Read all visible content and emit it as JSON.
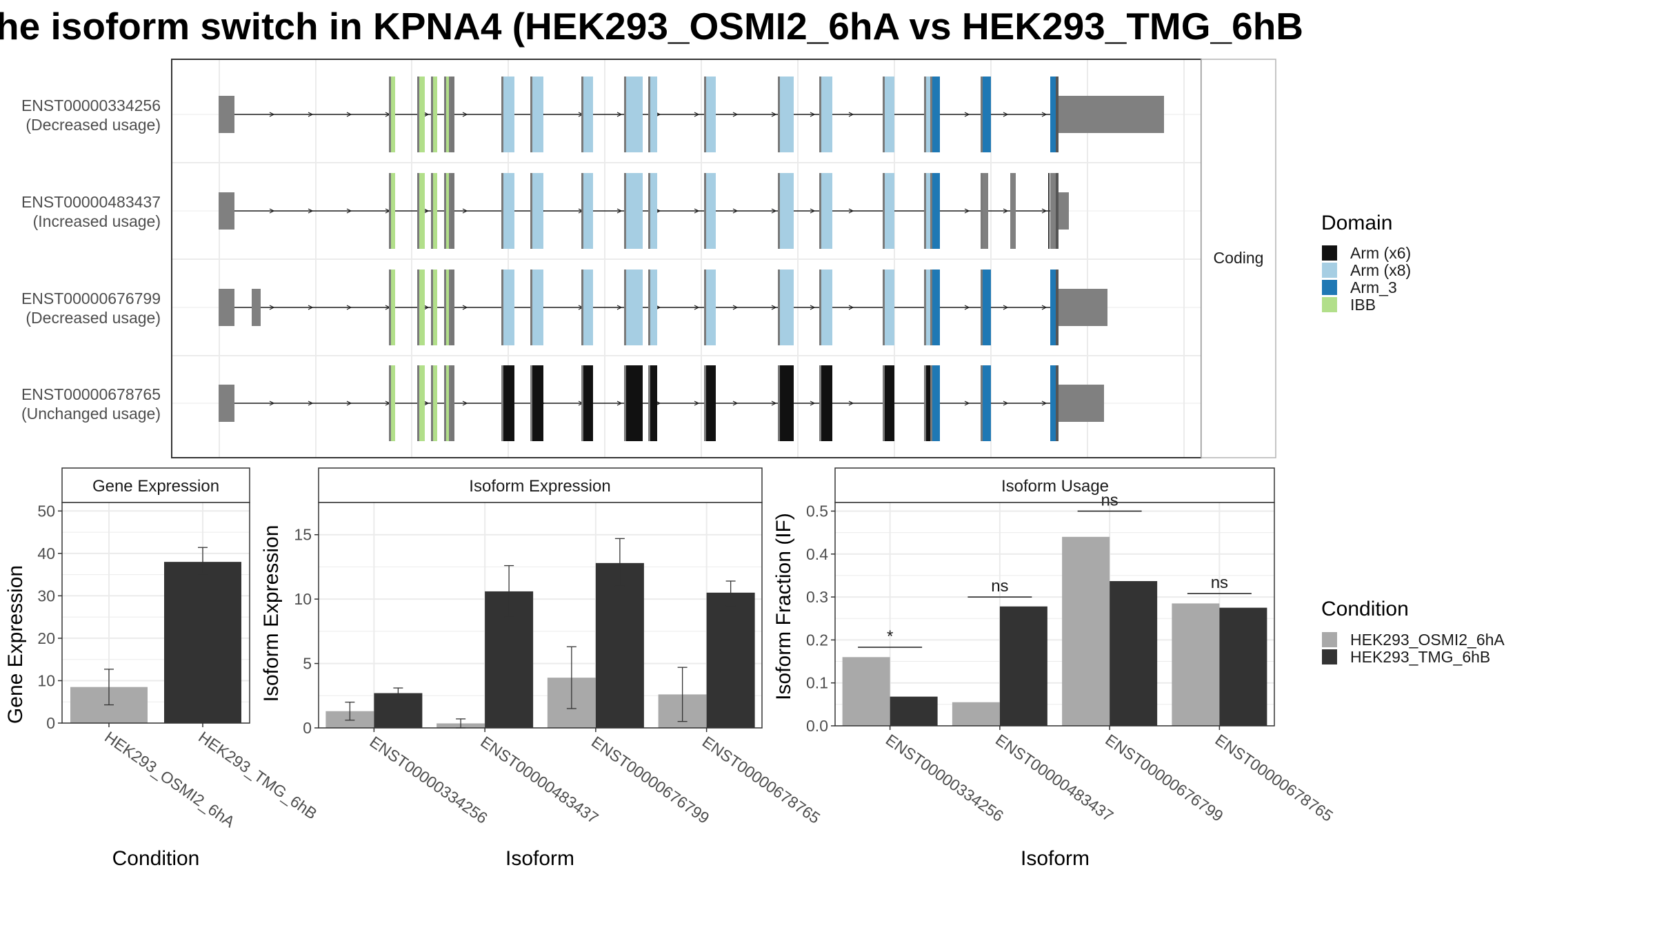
{
  "title": "he isoform switch in KPNA4 (HEK293_OSMI2_6hA vs HEK293_TMG_6hB",
  "colors": {
    "condA": "#a9a9a9",
    "condB": "#333333",
    "utr": "#808080",
    "arm_x6": "#111111",
    "arm_x8": "#a6cee3",
    "arm_3": "#1f78b4",
    "ibb": "#b2df8a",
    "grid": "#ebebeb",
    "panel_border": "#333333",
    "strip_bg": "#ffffff"
  },
  "structure_panel": {
    "facet_label": "Coding",
    "isoforms": [
      {
        "id": "ENST00000334256",
        "usage": "(Decreased usage)"
      },
      {
        "id": "ENST00000483437",
        "usage": "(Increased usage)"
      },
      {
        "id": "ENST00000676799",
        "usage": "(Decreased usage)"
      },
      {
        "id": "ENST00000678765",
        "usage": "(Unchanged usage)"
      }
    ],
    "domain_legend": {
      "title": "Domain",
      "items": [
        {
          "label": "Arm (x6)",
          "key": "arm_x6"
        },
        {
          "label": "Arm (x8)",
          "key": "arm_x8"
        },
        {
          "label": "Arm_3",
          "key": "arm_3"
        },
        {
          "label": "IBB",
          "key": "ibb"
        }
      ]
    }
  },
  "condition_legend": {
    "title": "Condition",
    "items": [
      {
        "label": "HEK293_OSMI2_6hA",
        "key": "condA"
      },
      {
        "label": "HEK293_TMG_6hB",
        "key": "condB"
      }
    ]
  },
  "chart_data": [
    {
      "type": "bar",
      "title": "Gene Expression",
      "xlabel": "Condition",
      "ylabel": "Gene Expression",
      "ylim": [
        0,
        52
      ],
      "yticks": [
        0,
        10,
        20,
        30,
        40,
        50
      ],
      "categories": [
        "HEK293_OSMI2_6hA",
        "HEK293_TMG_6hB"
      ],
      "values": [
        8.5,
        38
      ],
      "errors": [
        [
          4.3,
          12.7
        ],
        [
          35.2,
          41.4
        ]
      ]
    },
    {
      "type": "bar",
      "title": "Isoform Expression",
      "xlabel": "Isoform",
      "ylabel": "Isoform Expression",
      "ylim": [
        0,
        17.5
      ],
      "yticks": [
        0,
        5,
        10,
        15
      ],
      "categories": [
        "ENST00000334256",
        "ENST00000483437",
        "ENST00000676799",
        "ENST00000678765"
      ],
      "series": [
        {
          "name": "HEK293_OSMI2_6hA",
          "values": [
            1.3,
            0.35,
            3.9,
            2.6
          ],
          "errors": [
            [
              0.6,
              2.0
            ],
            [
              0.0,
              0.7
            ],
            [
              1.5,
              6.3
            ],
            [
              0.5,
              4.7
            ]
          ]
        },
        {
          "name": "HEK293_TMG_6hB",
          "values": [
            2.7,
            10.6,
            12.8,
            10.5
          ],
          "errors": [
            [
              2.2,
              3.1
            ],
            [
              8.6,
              12.6
            ],
            [
              11.0,
              14.7
            ],
            [
              9.5,
              11.4
            ]
          ]
        }
      ]
    },
    {
      "type": "bar",
      "title": "Isoform Usage",
      "xlabel": "Isoform",
      "ylabel": "Isoform Fraction (IF)",
      "ylim": [
        0,
        0.52
      ],
      "yticks": [
        0.0,
        0.1,
        0.2,
        0.3,
        0.4,
        0.5
      ],
      "categories": [
        "ENST00000334256",
        "ENST00000483437",
        "ENST00000676799",
        "ENST00000678765"
      ],
      "series": [
        {
          "name": "HEK293_OSMI2_6hA",
          "values": [
            0.16,
            0.055,
            0.44,
            0.285
          ]
        },
        {
          "name": "HEK293_TMG_6hB",
          "values": [
            0.068,
            0.278,
            0.337,
            0.275
          ]
        }
      ],
      "significance": [
        "*",
        "ns",
        "ns",
        "ns"
      ],
      "significance_y": [
        0.183,
        0.3,
        0.5,
        0.308
      ]
    }
  ]
}
